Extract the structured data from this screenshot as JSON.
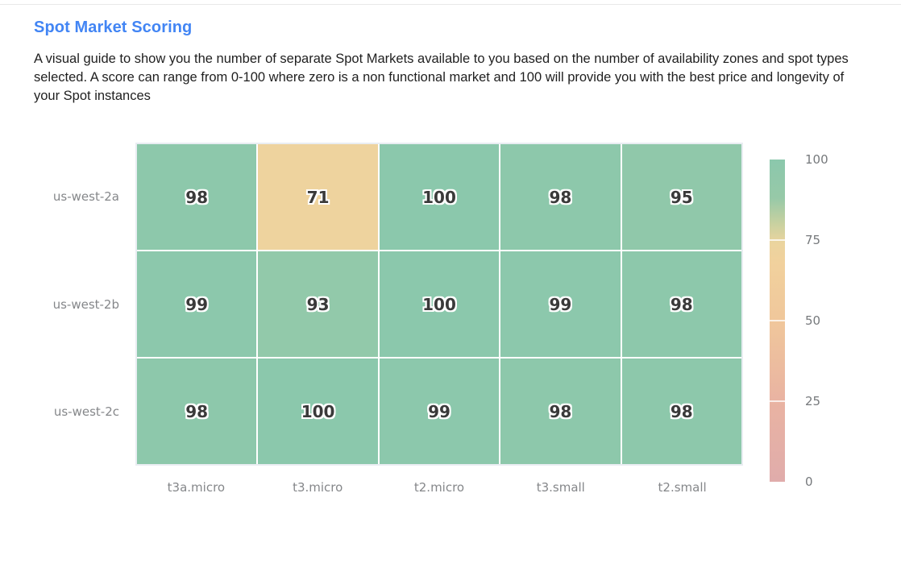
{
  "page": {
    "title": "Spot Market Scoring",
    "description": "A visual guide to show you the number of separate Spot Markets available to you based on the number of availability zones and spot types selected. A score can range from 0-100 where zero is a non functional market and 100 will provide you with the best price and longevity of your Spot instances"
  },
  "colors": {
    "title_blue": "#4285F4",
    "cell_value_text": "#3A3A3A",
    "axis_label_gray": "#85878A",
    "colorbar_label_gray": "#76797C",
    "cell_green": "#8BC8AC",
    "cell_tan": "#F0D49E",
    "grid_gap_white": "#FFFFFF"
  },
  "chart_data": {
    "type": "heatmap",
    "title": "Spot Market Scoring",
    "rows": [
      "us-west-2a",
      "us-west-2b",
      "us-west-2c"
    ],
    "columns": [
      "t3a.micro",
      "t3.micro",
      "t2.micro",
      "t3.small",
      "t2.small"
    ],
    "values": [
      [
        98,
        71,
        100,
        98,
        95
      ],
      [
        99,
        93,
        100,
        99,
        98
      ],
      [
        98,
        100,
        99,
        98,
        98
      ]
    ],
    "value_range": [
      0,
      100
    ],
    "grid": false,
    "legend_position": "right",
    "colorbar": {
      "ticks": [
        100,
        75,
        50,
        25,
        0
      ],
      "tick_lines_at": [
        75,
        50,
        25
      ]
    },
    "colormap_stops": [
      [
        0,
        "#E0ACAB"
      ],
      [
        25,
        "#E9B3A2"
      ],
      [
        50,
        "#F0C79B"
      ],
      [
        68,
        "#F1D19D"
      ],
      [
        74,
        "#EBD49E"
      ],
      [
        80,
        "#C9D1A0"
      ],
      [
        88,
        "#97C9A8"
      ],
      [
        100,
        "#8BC8AC"
      ]
    ]
  }
}
